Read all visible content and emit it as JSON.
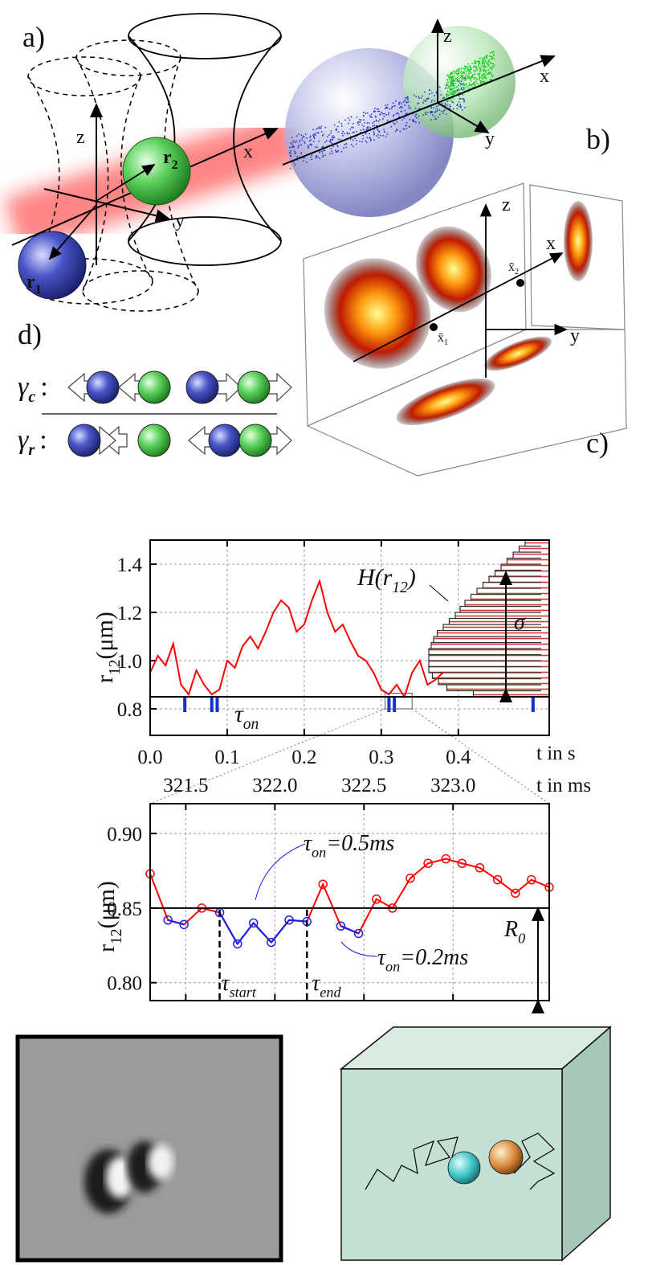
{
  "diagram": {
    "panel_labels": {
      "a": "a)",
      "b": "b)",
      "c": "c)",
      "d": "d)"
    },
    "axes_a": {
      "x": "x",
      "y": "y",
      "z": "z"
    },
    "axes_b": {
      "x": "x",
      "y": "y",
      "z": "z"
    },
    "axes_c": {
      "x": "x",
      "y": "y",
      "z": "z"
    },
    "r1": [
      "r",
      "1"
    ],
    "r2": [
      "r",
      "2"
    ],
    "x1": [
      "x̄",
      "1"
    ],
    "x2": [
      "x̄",
      "2"
    ],
    "gamma_c": [
      "γ",
      "c",
      ":"
    ],
    "gamma_r": [
      "γ",
      "r",
      ":"
    ]
  },
  "chart_data": [
    {
      "type": "line",
      "ylabel": [
        "r",
        "12",
        "(μm)"
      ],
      "xlabel": "t in s",
      "x": [
        0.0,
        0.01,
        0.02,
        0.03,
        0.04,
        0.05,
        0.06,
        0.07,
        0.08,
        0.09,
        0.1,
        0.11,
        0.12,
        0.13,
        0.14,
        0.15,
        0.16,
        0.17,
        0.18,
        0.19,
        0.2,
        0.21,
        0.22,
        0.23,
        0.24,
        0.25,
        0.26,
        0.27,
        0.28,
        0.29,
        0.3,
        0.31,
        0.32,
        0.33,
        0.34,
        0.35,
        0.36,
        0.37,
        0.38
      ],
      "values": [
        0.95,
        1.02,
        0.98,
        1.07,
        0.9,
        0.86,
        0.96,
        0.9,
        0.86,
        0.88,
        1.0,
        0.97,
        1.06,
        1.1,
        1.05,
        1.12,
        1.2,
        1.25,
        1.22,
        1.12,
        1.15,
        1.25,
        1.33,
        1.2,
        1.12,
        1.15,
        1.08,
        1.02,
        1.0,
        0.95,
        0.88,
        0.86,
        0.9,
        0.85,
        0.95,
        1.0,
        0.9,
        0.92,
        0.95
      ],
      "color": "#ff0000",
      "threshold": 0.85,
      "events": {
        "x": [
          0.045,
          0.08,
          0.087,
          0.31,
          0.317,
          0.497
        ],
        "color": "#1030d0"
      },
      "histogram": {
        "bins": [
          0.85,
          0.875,
          0.9,
          0.925,
          0.95,
          0.975,
          1.0,
          1.025,
          1.05,
          1.075,
          1.1,
          1.125,
          1.15,
          1.175,
          1.2,
          1.225,
          1.25,
          1.275,
          1.3,
          1.325,
          1.35,
          1.375,
          1.4,
          1.425,
          1.45,
          1.475,
          1.5
        ],
        "counts": [
          63,
          85,
          92,
          97,
          100,
          100,
          100,
          100,
          98,
          96,
          93,
          88,
          83,
          78,
          74,
          70,
          65,
          60,
          55,
          50,
          45,
          40,
          35,
          30,
          25,
          20
        ],
        "color": "#ff0000",
        "label": [
          "H(r",
          "12",
          ")"
        ]
      },
      "sigma_label": "σ",
      "tau_on_label": [
        "τ",
        "on"
      ],
      "zoom_box": {
        "x": [
          0.305,
          0.34
        ],
        "y": [
          0.8,
          0.865
        ]
      },
      "xlim": [
        0,
        0.518
      ],
      "ylim": [
        0.69,
        1.5
      ],
      "xticks": [
        {
          "value": 0,
          "label": "0.0"
        },
        0.1,
        0.2,
        0.3,
        0.4
      ],
      "yticks": [
        0.8,
        {
          "value": 1,
          "label": "1.0"
        },
        1.2,
        1.4
      ],
      "grid": true
    },
    {
      "type": "line",
      "ylabel": [
        "r",
        "12",
        "(μm)"
      ],
      "xlabel": "t in ms",
      "x": [
        321.3,
        321.4,
        321.49,
        321.59,
        321.69,
        321.79,
        321.88,
        321.98,
        322.08,
        322.18,
        322.27,
        322.37,
        322.47,
        322.57,
        322.66,
        322.76,
        322.86,
        322.96,
        323.05,
        323.15,
        323.25,
        323.35,
        323.44,
        323.54
      ],
      "values": [
        0.873,
        0.842,
        0.839,
        0.85,
        0.847,
        0.826,
        0.84,
        0.827,
        0.842,
        0.841,
        0.866,
        0.838,
        0.833,
        0.856,
        0.85,
        0.87,
        0.88,
        0.883,
        0.88,
        0.877,
        0.869,
        0.86,
        0.869,
        0.864
      ],
      "color": "#ff0000",
      "below_color": "#2020e0",
      "threshold": 0.85,
      "tau_start": 321.69,
      "tau_end": 322.18,
      "labels": {
        "tau_start": [
          "τ",
          "start"
        ],
        "tau_end": [
          "τ",
          "end"
        ],
        "R0": [
          "R",
          "0"
        ],
        "tau_on_a": [
          "τ",
          "on",
          "=0.5ms"
        ],
        "tau_on_b": [
          "τ",
          "on",
          "=0.2ms"
        ]
      },
      "xlim": [
        321.3,
        323.54
      ],
      "ylim": [
        0.788,
        0.92
      ],
      "xticks": [
        321.5,
        {
          "value": 322,
          "label": "322.0"
        },
        322.5,
        {
          "value": 323,
          "label": "323.0"
        }
      ],
      "yticks": [
        {
          "value": 0.8,
          "label": "0.80"
        },
        0.85,
        {
          "value": 0.9,
          "label": "0.90"
        }
      ],
      "grid": true
    }
  ]
}
